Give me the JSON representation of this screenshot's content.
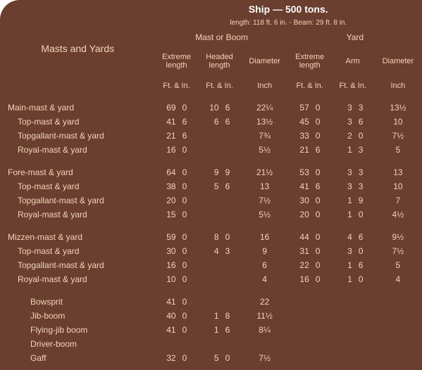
{
  "colors": {
    "bg": "#6a3f30",
    "text": "#f3d4b5",
    "title": "#ffffff"
  },
  "header": {
    "left_title": "Masts and Yards",
    "ship_title": "Ship — 500 tons.",
    "ship_sub": "length: 118 ft. 6 in.  -  Beam: 29 ft. 8 in.",
    "col_mast": "Mast or Boom",
    "col_yard": "Yard",
    "c1": "Extreme length",
    "c2": "Headed length",
    "c3": "Diameter",
    "c4": "Extreme length",
    "c5": "Arm",
    "c6": "Diameter",
    "u_fi": "Ft. & In.",
    "u_in": "Inch"
  },
  "groups": [
    {
      "rows": [
        {
          "lbl": "Main-mast & yard",
          "ind": 0,
          "el_f": "69",
          "el_i": "0",
          "hl_f": "10",
          "hl_i": "6",
          "d": "22¼",
          "yel_f": "57",
          "yel_i": "0",
          "ya_f": "3",
          "ya_i": "3",
          "yd": "13½"
        },
        {
          "lbl": "Top-mast & yard",
          "ind": 1,
          "el_f": "41",
          "el_i": "6",
          "hl_f": "6",
          "hl_i": "6",
          "d": "13½",
          "yel_f": "45",
          "yel_i": "0",
          "ya_f": "3",
          "ya_i": "6",
          "yd": "10"
        },
        {
          "lbl": "Topgallant-mast & yard",
          "ind": 1,
          "el_f": "21",
          "el_i": "6",
          "hl_f": "",
          "hl_i": "",
          "d": "7¾",
          "yel_f": "33",
          "yel_i": "0",
          "ya_f": "2",
          "ya_i": "0",
          "yd": "7½"
        },
        {
          "lbl": "Royal-mast & yard",
          "ind": 1,
          "el_f": "16",
          "el_i": "0",
          "hl_f": "",
          "hl_i": "",
          "d": "5½",
          "yel_f": "21",
          "yel_i": "6",
          "ya_f": "1",
          "ya_i": "3",
          "yd": "5"
        }
      ]
    },
    {
      "rows": [
        {
          "lbl": "Fore-mast & yard",
          "ind": 0,
          "el_f": "64",
          "el_i": "0",
          "hl_f": "9",
          "hl_i": "9",
          "d": "21½",
          "yel_f": "53",
          "yel_i": "0",
          "ya_f": "3",
          "ya_i": "3",
          "yd": "13"
        },
        {
          "lbl": "Top-mast & yard",
          "ind": 1,
          "el_f": "38",
          "el_i": "0",
          "hl_f": "5",
          "hl_i": "6",
          "d": "13",
          "yel_f": "41",
          "yel_i": "6",
          "ya_f": "3",
          "ya_i": "3",
          "yd": "10"
        },
        {
          "lbl": "Topgallant-mast & yard",
          "ind": 1,
          "el_f": "20",
          "el_i": "0",
          "hl_f": "",
          "hl_i": "",
          "d": "7½",
          "yel_f": "30",
          "yel_i": "0",
          "ya_f": "1",
          "ya_i": "9",
          "yd": "7"
        },
        {
          "lbl": "Royal-mast & yard",
          "ind": 1,
          "el_f": "15",
          "el_i": "0",
          "hl_f": "",
          "hl_i": "",
          "d": "5½",
          "yel_f": "20",
          "yel_i": "0",
          "ya_f": "1",
          "ya_i": "0",
          "yd": "4½"
        }
      ]
    },
    {
      "rows": [
        {
          "lbl": "Mizzen-mast & yard",
          "ind": 0,
          "el_f": "59",
          "el_i": "0",
          "hl_f": "8",
          "hl_i": "0",
          "d": "16",
          "yel_f": "44",
          "yel_i": "0",
          "ya_f": "4",
          "ya_i": "6",
          "yd": "9½"
        },
        {
          "lbl": "Top-mast & yard",
          "ind": 1,
          "el_f": "30",
          "el_i": "0",
          "hl_f": "4",
          "hl_i": "3",
          "d": "9",
          "yel_f": "31",
          "yel_i": "0",
          "ya_f": "3",
          "ya_i": "0",
          "yd": "7½"
        },
        {
          "lbl": "Topgallant-mast & yard",
          "ind": 1,
          "el_f": "16",
          "el_i": "0",
          "hl_f": "",
          "hl_i": "",
          "d": "6",
          "yel_f": "22",
          "yel_i": "0",
          "ya_f": "1",
          "ya_i": "6",
          "yd": "5"
        },
        {
          "lbl": "Royal-mast & yard",
          "ind": 1,
          "el_f": "10",
          "el_i": "0",
          "hl_f": "",
          "hl_i": "",
          "d": "4",
          "yel_f": "16",
          "yel_i": "0",
          "ya_f": "1",
          "ya_i": "0",
          "yd": "4"
        }
      ]
    }
  ],
  "boom_group": {
    "rows": [
      {
        "lbl": "Bowsprit",
        "ind": 2,
        "el_f": "41",
        "el_i": "0",
        "hl_f": "",
        "hl_i": "",
        "d": "22"
      },
      {
        "lbl": "Jib-boom",
        "ind": 2,
        "el_f": "40",
        "el_i": "0",
        "hl_f": "1",
        "hl_i": "8",
        "d": "11½"
      },
      {
        "lbl": "Flying-jib boom",
        "ind": 2,
        "el_f": "41",
        "el_i": "0",
        "hl_f": "1",
        "hl_i": "6",
        "d": "8¼"
      },
      {
        "lbl": "Driver-boom",
        "ind": 2,
        "el_f": "",
        "el_i": "",
        "hl_f": "",
        "hl_i": "",
        "d": ""
      },
      {
        "lbl": "Gaff",
        "ind": 2,
        "el_f": "32",
        "el_i": "0",
        "hl_f": "5",
        "hl_i": "0",
        "d": "7½"
      }
    ]
  }
}
